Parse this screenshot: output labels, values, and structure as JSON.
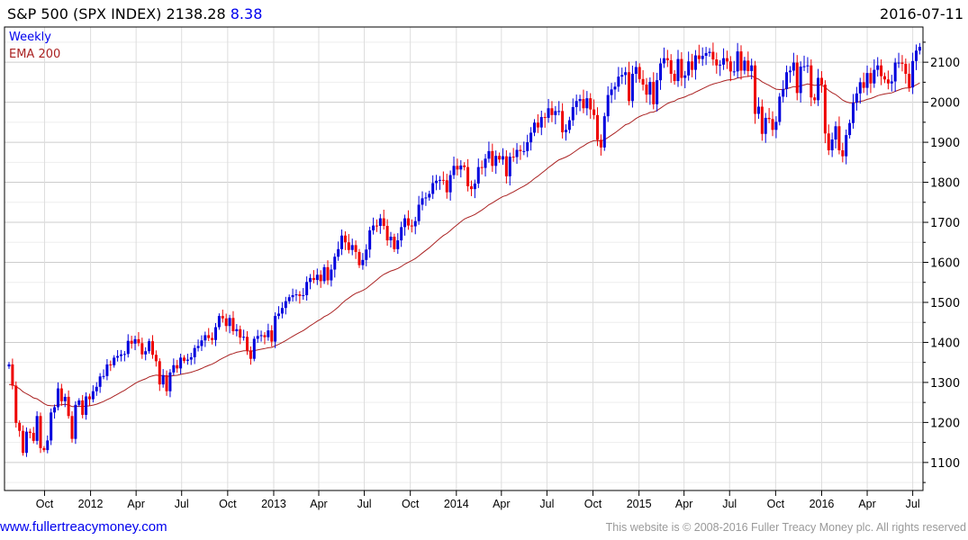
{
  "header": {
    "title": "S&P 500 (SPX INDEX) 2138.28",
    "change": "8.38",
    "date": "2016-07-11"
  },
  "legend": {
    "period": "Weekly",
    "indicator": "EMA 200"
  },
  "footer": {
    "link": "www.fullertreacymoney.com",
    "copyright": "This website is © 2008-2016 Fuller Treacy Money plc. All rights reserved"
  },
  "colors": {
    "up": "#0000dd",
    "down": "#ee0000",
    "ema": "#aa2222",
    "link": "#0000ee",
    "grid": "#dddddd"
  },
  "chart_data": {
    "type": "candlestick",
    "title": "S&P 500 (SPX INDEX)",
    "interval": "weekly",
    "first_week": "2011-07-22",
    "ylim": [
      1030,
      2188
    ],
    "yticks": [
      1100,
      1200,
      1300,
      1400,
      1500,
      1600,
      1700,
      1800,
      1900,
      2000,
      2100
    ],
    "xticks": [
      {
        "label": "Oct",
        "date": "2011-10-01"
      },
      {
        "label": "2012",
        "date": "2012-01-01"
      },
      {
        "label": "Apr",
        "date": "2012-04-01"
      },
      {
        "label": "Jul",
        "date": "2012-07-01"
      },
      {
        "label": "Oct",
        "date": "2012-10-01"
      },
      {
        "label": "2013",
        "date": "2013-01-01"
      },
      {
        "label": "Apr",
        "date": "2013-04-01"
      },
      {
        "label": "Jul",
        "date": "2013-07-01"
      },
      {
        "label": "Oct",
        "date": "2013-10-01"
      },
      {
        "label": "2014",
        "date": "2014-01-01"
      },
      {
        "label": "Apr",
        "date": "2014-04-01"
      },
      {
        "label": "Jul",
        "date": "2014-07-01"
      },
      {
        "label": "Oct",
        "date": "2014-10-01"
      },
      {
        "label": "2015",
        "date": "2015-01-01"
      },
      {
        "label": "Apr",
        "date": "2015-04-01"
      },
      {
        "label": "Jul",
        "date": "2015-07-01"
      },
      {
        "label": "Oct",
        "date": "2015-10-01"
      },
      {
        "label": "2016",
        "date": "2016-01-01"
      },
      {
        "label": "Apr",
        "date": "2016-04-01"
      },
      {
        "label": "Jul",
        "date": "2016-07-01"
      }
    ],
    "first_open": 1340,
    "wick_pct": 0.9,
    "closes": [
      1345,
      1292,
      1199,
      1179,
      1124,
      1177,
      1174,
      1154,
      1216,
      1136,
      1131,
      1155,
      1225,
      1238,
      1285,
      1253,
      1264,
      1216,
      1159,
      1244,
      1255,
      1219,
      1265,
      1258,
      1278,
      1289,
      1315,
      1316,
      1345,
      1343,
      1362,
      1366,
      1370,
      1371,
      1404,
      1397,
      1408,
      1398,
      1370,
      1378,
      1403,
      1369,
      1353,
      1295,
      1318,
      1278,
      1325,
      1343,
      1335,
      1362,
      1354,
      1357,
      1363,
      1386,
      1391,
      1405,
      1418,
      1411,
      1406,
      1438,
      1466,
      1460,
      1441,
      1461,
      1428,
      1433,
      1412,
      1414,
      1380,
      1359,
      1409,
      1416,
      1418,
      1413,
      1430,
      1402,
      1466,
      1472,
      1486,
      1503,
      1513,
      1518,
      1520,
      1516,
      1518,
      1551,
      1561,
      1556,
      1569,
      1553,
      1588,
      1555,
      1582,
      1614,
      1633,
      1667,
      1650,
      1631,
      1643,
      1626,
      1593,
      1606,
      1632,
      1680,
      1692,
      1691,
      1710,
      1691,
      1655,
      1664,
      1633,
      1655,
      1688,
      1710,
      1692,
      1690,
      1703,
      1744,
      1760,
      1762,
      1771,
      1798,
      1804,
      1806,
      1805,
      1775,
      1818,
      1841,
      1832,
      1842,
      1838,
      1790,
      1783,
      1797,
      1838,
      1836,
      1859,
      1878,
      1841,
      1866,
      1857,
      1865,
      1815,
      1864,
      1863,
      1881,
      1878,
      1878,
      1900,
      1924,
      1949,
      1937,
      1963,
      1961,
      1985,
      1968,
      1978,
      1978,
      1925,
      1931,
      1955,
      1988,
      2003,
      2008,
      1985,
      2010,
      1982,
      1968,
      1906,
      1887,
      1965,
      2018,
      2032,
      2039,
      2064,
      2068,
      2075,
      2003,
      2071,
      2088,
      2058,
      2044,
      2019,
      2051,
      1995,
      2055,
      2097,
      2110,
      2105,
      2071,
      2053,
      2108,
      2061,
      2067,
      2102,
      2081,
      2117,
      2108,
      2116,
      2123,
      2126,
      2107,
      2092,
      2094,
      2110,
      2102,
      2077,
      2077,
      2127,
      2079,
      2104,
      2078,
      2092,
      1971,
      1989,
      1921,
      1961,
      1958,
      1931,
      1951,
      2014,
      2033,
      2075,
      2079,
      2099,
      2023,
      2089,
      2090,
      2092,
      2012,
      2005,
      2061,
      2044,
      1922,
      1880,
      1907,
      1940,
      1880,
      1865,
      1918,
      1948,
      1999,
      2022,
      2050,
      2036,
      2073,
      2047,
      2081,
      2092,
      2065,
      2057,
      2047,
      2052,
      2099,
      2099,
      2096,
      2071,
      2037,
      2103,
      2129,
      2138.28
    ],
    "ema": {
      "label": "EMA 200",
      "period_weeks": 40,
      "seed": 1292
    }
  }
}
